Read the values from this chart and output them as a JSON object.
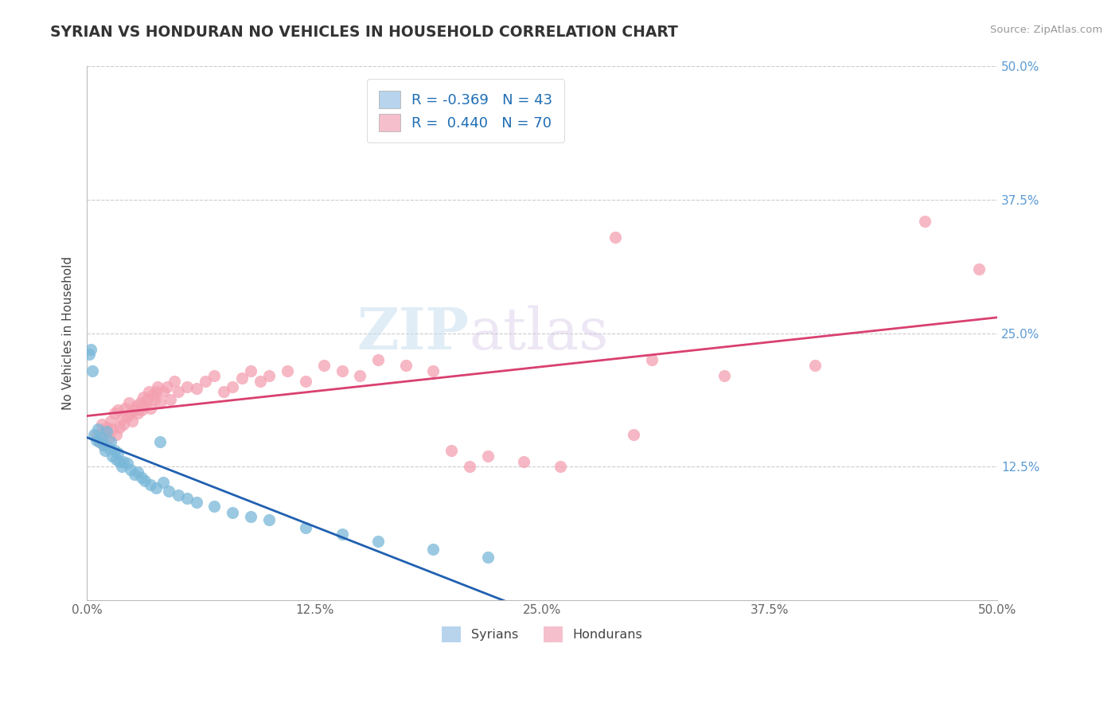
{
  "title": "SYRIAN VS HONDURAN NO VEHICLES IN HOUSEHOLD CORRELATION CHART",
  "source": "Source: ZipAtlas.com",
  "ylabel": "No Vehicles in Household",
  "xlim": [
    0.0,
    0.5
  ],
  "ylim": [
    0.0,
    0.5
  ],
  "xtick_labels": [
    "0.0%",
    "12.5%",
    "25.0%",
    "37.5%",
    "50.0%"
  ],
  "xtick_vals": [
    0.0,
    0.125,
    0.25,
    0.375,
    0.5
  ],
  "ytick_vals": [
    0.125,
    0.25,
    0.375,
    0.5
  ],
  "right_ytick_labels": [
    "12.5%",
    "25.0%",
    "37.5%",
    "50.0%"
  ],
  "right_ytick_vals": [
    0.125,
    0.25,
    0.375,
    0.5
  ],
  "syrian_color": "#7ab8d9",
  "honduran_color": "#f4a0b0",
  "syrian_line_color": "#2060b0",
  "honduran_line_color": "#d94070",
  "legend_syrian_fill": "#b8d4ed",
  "legend_honduran_fill": "#f5c0cc",
  "R_syrian": -0.369,
  "N_syrian": 43,
  "R_honduran": 0.44,
  "N_honduran": 70,
  "watermark_zip": "ZIP",
  "watermark_atlas": "atlas",
  "background_color": "#ffffff",
  "syrian_scatter": [
    [
      0.001,
      0.23
    ],
    [
      0.002,
      0.235
    ],
    [
      0.003,
      0.215
    ],
    [
      0.004,
      0.155
    ],
    [
      0.005,
      0.15
    ],
    [
      0.006,
      0.16
    ],
    [
      0.007,
      0.148
    ],
    [
      0.008,
      0.152
    ],
    [
      0.009,
      0.145
    ],
    [
      0.01,
      0.14
    ],
    [
      0.011,
      0.158
    ],
    [
      0.012,
      0.142
    ],
    [
      0.013,
      0.148
    ],
    [
      0.014,
      0.135
    ],
    [
      0.015,
      0.14
    ],
    [
      0.016,
      0.132
    ],
    [
      0.017,
      0.138
    ],
    [
      0.018,
      0.13
    ],
    [
      0.019,
      0.125
    ],
    [
      0.02,
      0.13
    ],
    [
      0.022,
      0.128
    ],
    [
      0.024,
      0.122
    ],
    [
      0.026,
      0.118
    ],
    [
      0.028,
      0.12
    ],
    [
      0.03,
      0.115
    ],
    [
      0.032,
      0.112
    ],
    [
      0.035,
      0.108
    ],
    [
      0.038,
      0.105
    ],
    [
      0.04,
      0.148
    ],
    [
      0.042,
      0.11
    ],
    [
      0.045,
      0.102
    ],
    [
      0.05,
      0.098
    ],
    [
      0.055,
      0.095
    ],
    [
      0.06,
      0.092
    ],
    [
      0.07,
      0.088
    ],
    [
      0.08,
      0.082
    ],
    [
      0.09,
      0.078
    ],
    [
      0.1,
      0.075
    ],
    [
      0.12,
      0.068
    ],
    [
      0.14,
      0.062
    ],
    [
      0.16,
      0.055
    ],
    [
      0.19,
      0.048
    ],
    [
      0.22,
      0.04
    ]
  ],
  "honduran_scatter": [
    [
      0.005,
      0.155
    ],
    [
      0.007,
      0.148
    ],
    [
      0.008,
      0.165
    ],
    [
      0.009,
      0.145
    ],
    [
      0.01,
      0.158
    ],
    [
      0.011,
      0.162
    ],
    [
      0.012,
      0.152
    ],
    [
      0.013,
      0.168
    ],
    [
      0.014,
      0.16
    ],
    [
      0.015,
      0.175
    ],
    [
      0.016,
      0.155
    ],
    [
      0.017,
      0.178
    ],
    [
      0.018,
      0.162
    ],
    [
      0.019,
      0.17
    ],
    [
      0.02,
      0.165
    ],
    [
      0.021,
      0.18
    ],
    [
      0.022,
      0.172
    ],
    [
      0.023,
      0.185
    ],
    [
      0.024,
      0.175
    ],
    [
      0.025,
      0.168
    ],
    [
      0.026,
      0.178
    ],
    [
      0.027,
      0.182
    ],
    [
      0.028,
      0.175
    ],
    [
      0.029,
      0.185
    ],
    [
      0.03,
      0.178
    ],
    [
      0.031,
      0.19
    ],
    [
      0.032,
      0.182
    ],
    [
      0.033,
      0.188
    ],
    [
      0.034,
      0.195
    ],
    [
      0.035,
      0.18
    ],
    [
      0.036,
      0.192
    ],
    [
      0.037,
      0.188
    ],
    [
      0.038,
      0.195
    ],
    [
      0.039,
      0.2
    ],
    [
      0.04,
      0.185
    ],
    [
      0.042,
      0.195
    ],
    [
      0.044,
      0.2
    ],
    [
      0.046,
      0.188
    ],
    [
      0.048,
      0.205
    ],
    [
      0.05,
      0.195
    ],
    [
      0.055,
      0.2
    ],
    [
      0.06,
      0.198
    ],
    [
      0.065,
      0.205
    ],
    [
      0.07,
      0.21
    ],
    [
      0.075,
      0.195
    ],
    [
      0.08,
      0.2
    ],
    [
      0.085,
      0.208
    ],
    [
      0.09,
      0.215
    ],
    [
      0.095,
      0.205
    ],
    [
      0.1,
      0.21
    ],
    [
      0.11,
      0.215
    ],
    [
      0.12,
      0.205
    ],
    [
      0.13,
      0.22
    ],
    [
      0.14,
      0.215
    ],
    [
      0.15,
      0.21
    ],
    [
      0.16,
      0.225
    ],
    [
      0.175,
      0.22
    ],
    [
      0.19,
      0.215
    ],
    [
      0.2,
      0.14
    ],
    [
      0.21,
      0.125
    ],
    [
      0.22,
      0.135
    ],
    [
      0.24,
      0.13
    ],
    [
      0.26,
      0.125
    ],
    [
      0.29,
      0.34
    ],
    [
      0.3,
      0.155
    ],
    [
      0.31,
      0.225
    ],
    [
      0.35,
      0.21
    ],
    [
      0.4,
      0.22
    ],
    [
      0.46,
      0.355
    ],
    [
      0.49,
      0.31
    ]
  ]
}
